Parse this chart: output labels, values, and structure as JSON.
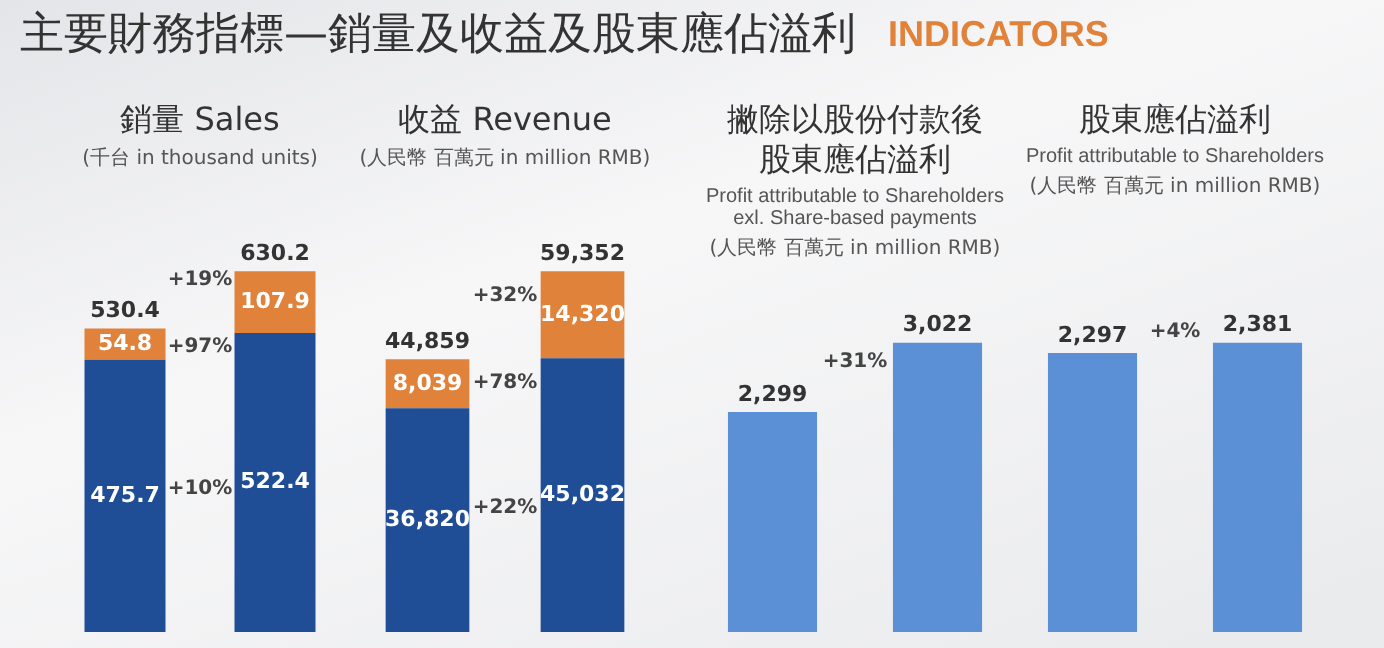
{
  "chart_data": [
    {
      "type": "bar",
      "title": "銷量 Sales",
      "ylabel": "(千台 in thousand units)",
      "categories": [
        null,
        null
      ],
      "stacked": true,
      "tick_labels": false,
      "legend": false,
      "series": [
        {
          "color": "#1f4e96",
          "values": [
            475.7,
            522.4
          ],
          "value_labels": [
            "475.7",
            "522.4"
          ]
        },
        {
          "color": "#e0823a",
          "values": [
            54.8,
            107.9
          ],
          "value_labels": [
            "54.8",
            "107.9"
          ]
        }
      ],
      "totals": [
        "530.4",
        "630.2"
      ],
      "annotations": [
        "主要財務指標—銷量及收益及股東應佔溢利",
        "INDICATORS",
        "+19%",
        "+97%",
        "+10%"
      ]
    },
    {
      "type": "bar",
      "title": "收益 Revenue",
      "ylabel": "(人民幣 百萬元 in million RMB)",
      "categories": [
        null,
        null
      ],
      "stacked": true,
      "tick_labels": false,
      "legend": false,
      "series": [
        {
          "color": "#1f4e96",
          "values": [
            36820,
            45032
          ],
          "value_labels": [
            "36,820",
            "45,032"
          ]
        },
        {
          "color": "#e0823a",
          "values": [
            8039,
            14320
          ],
          "value_labels": [
            "8,039",
            "14,320"
          ]
        }
      ],
      "totals": [
        "44,859",
        "59,352"
      ],
      "annotations": [
        "+32%",
        "+78%",
        "+22%"
      ]
    },
    {
      "type": "bar",
      "title": "撇除以股份付款後股東應佔溢利",
      "subtitle": "Profit attributable to Shareholders exl. Share-based payments",
      "ylabel": "(人民幣 百萬元 in million RMB)",
      "categories": [
        null,
        null
      ],
      "tick_labels": false,
      "legend": false,
      "series": [
        {
          "color": "#5b8fd6",
          "values": [
            2299,
            3022
          ],
          "value_labels": [
            "2,299",
            "3,022"
          ]
        }
      ],
      "annotations": [
        "+31%"
      ]
    },
    {
      "type": "bar",
      "title": "股東應佔溢利",
      "subtitle": "Profit attributable to Shareholders",
      "ylabel": "(人民幣 百萬元 in million RMB)",
      "categories": [
        null,
        null
      ],
      "tick_labels": false,
      "legend": false,
      "series": [
        {
          "color": "#5b8fd6",
          "values": [
            2297,
            2381
          ],
          "value_labels": [
            "2,297",
            "2,381"
          ]
        }
      ],
      "annotations": [
        "+4%"
      ]
    }
  ]
}
